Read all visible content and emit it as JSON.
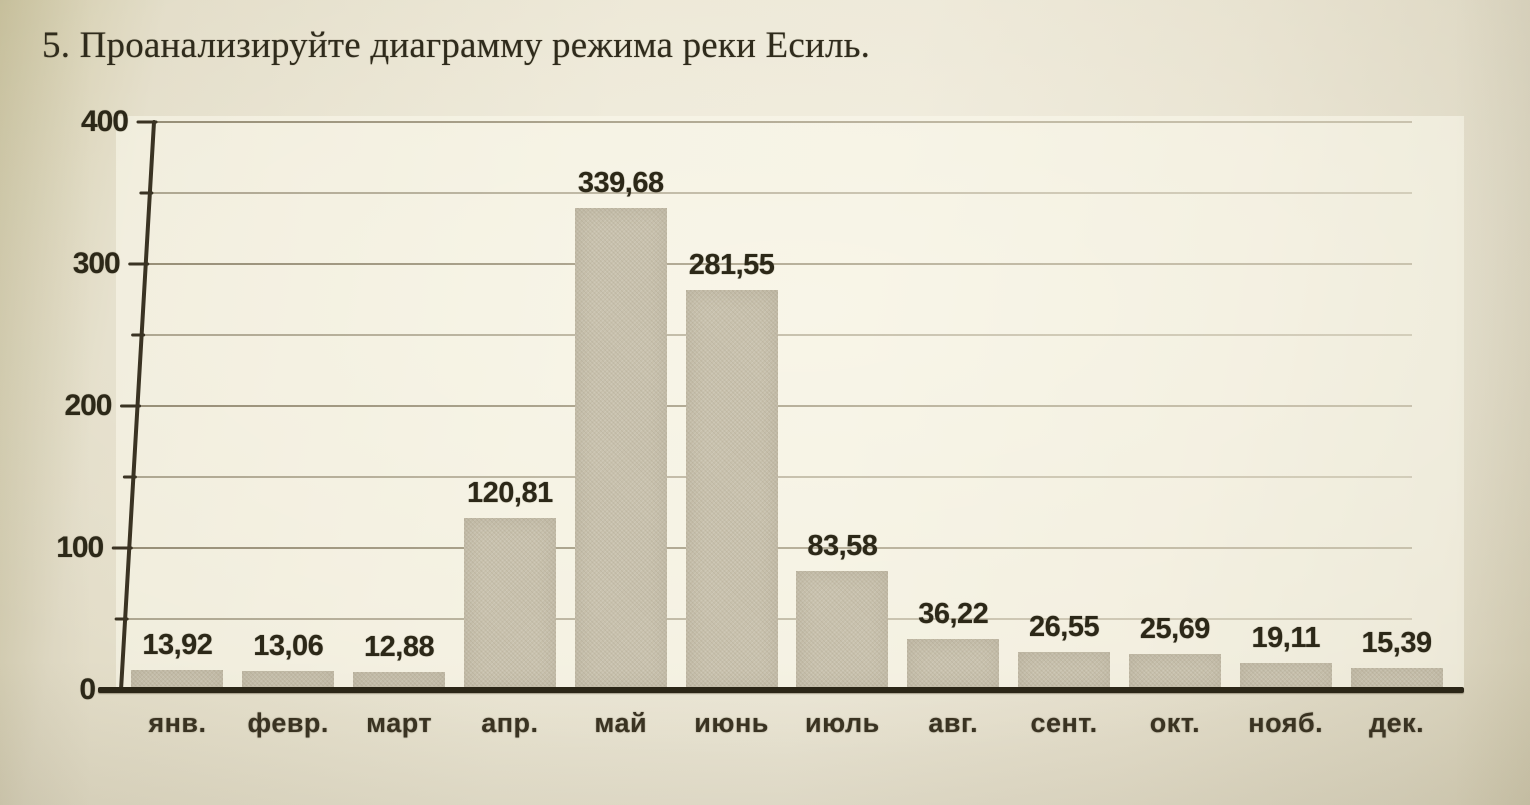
{
  "page": {
    "title": "5. Проанализируйте диаграмму режима реки Есиль."
  },
  "chart_data": {
    "type": "bar",
    "categories": [
      "янв.",
      "февр.",
      "март",
      "апр.",
      "май",
      "июнь",
      "июль",
      "авг.",
      "сент.",
      "окт.",
      "нояб.",
      "дек."
    ],
    "values": [
      13.92,
      13.06,
      12.88,
      120.81,
      339.68,
      281.55,
      83.58,
      36.22,
      26.55,
      25.69,
      19.11,
      15.39
    ],
    "value_labels": [
      "13,92",
      "13,06",
      "12,88",
      "120,81",
      "339,68",
      "281,55",
      "83,58",
      "36,22",
      "26,55",
      "25,69",
      "19,11",
      "15,39"
    ],
    "title": "",
    "xlabel": "",
    "ylabel": "",
    "ylim": [
      0,
      400
    ],
    "yticks": [
      0,
      100,
      200,
      300,
      400
    ],
    "ytick_labels": [
      "0",
      "100",
      "200",
      "300",
      "400"
    ],
    "grid": true,
    "grid_minor_step": 50,
    "legend": "none",
    "colors": {
      "bar": "#c8c1ad",
      "axis": "#3a3323",
      "baseline": "#2b2617",
      "gridline": "#6e6040",
      "text": "#2c2818",
      "paper": "#e9e3d0"
    }
  }
}
